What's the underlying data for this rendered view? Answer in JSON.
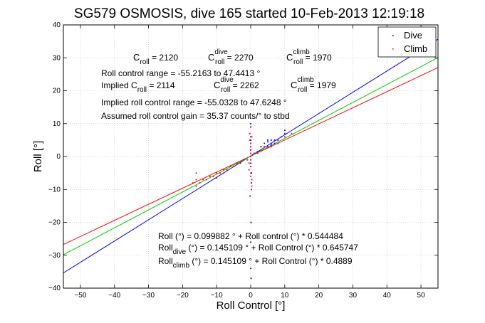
{
  "chart_data": {
    "type": "scatter",
    "title": "SG579 OSMOSIS, dive 165 started 10-Feb-2013 12:19:18",
    "xlabel": "Roll Control [°]",
    "ylabel": "Roll [°]",
    "xlim": [
      -55,
      55
    ],
    "ylim": [
      -40,
      40
    ],
    "xticks": [
      -50,
      -40,
      -30,
      -20,
      -10,
      0,
      10,
      20,
      30,
      40,
      50
    ],
    "yticks": [
      -40,
      -30,
      -20,
      -10,
      0,
      10,
      20,
      30,
      40
    ],
    "legend": {
      "position": "top-right",
      "entries": [
        "Dive",
        "Climb"
      ]
    },
    "colors": {
      "dive": "#0000ff",
      "climb": "#ff0000",
      "combined": "#00cc00"
    },
    "series": [
      {
        "name": "Dive",
        "color": "#0000ff",
        "points": [
          [
            0,
            -3
          ],
          [
            0,
            -2
          ],
          [
            0,
            -1
          ],
          [
            0,
            0
          ],
          [
            0,
            1
          ],
          [
            0,
            2
          ],
          [
            0,
            3
          ],
          [
            0,
            4
          ],
          [
            0,
            5
          ],
          [
            0,
            6
          ],
          [
            0,
            9
          ],
          [
            0,
            10
          ],
          [
            0.2,
            -5
          ],
          [
            0.2,
            -8
          ],
          [
            -0.2,
            -12
          ],
          [
            0.1,
            -20
          ],
          [
            0,
            -26
          ],
          [
            0,
            -34
          ],
          [
            0.1,
            -37
          ],
          [
            0.5,
            0.5
          ],
          [
            1,
            1
          ],
          [
            2,
            1.5
          ],
          [
            3,
            2
          ],
          [
            4,
            3
          ],
          [
            5,
            3
          ],
          [
            5,
            4.5
          ],
          [
            6,
            3.5
          ],
          [
            6,
            4
          ],
          [
            7,
            4
          ],
          [
            8,
            5
          ],
          [
            9,
            6
          ],
          [
            10,
            7
          ],
          [
            10,
            8
          ],
          [
            5,
            5
          ],
          [
            4,
            4
          ],
          [
            6,
            5
          ],
          [
            3,
            3
          ],
          [
            7,
            5
          ]
        ]
      },
      {
        "name": "Climb",
        "color": "#ff0000",
        "points": [
          [
            -16,
            -5
          ],
          [
            -16,
            -7
          ],
          [
            -17,
            -8
          ],
          [
            -16,
            -9
          ],
          [
            -15,
            -8
          ],
          [
            -14,
            -7
          ],
          [
            -13,
            -7
          ],
          [
            -12,
            -6
          ],
          [
            -11,
            -6
          ],
          [
            -10,
            -5
          ],
          [
            -10,
            -6.5
          ],
          [
            -9,
            -5
          ],
          [
            -8,
            -4
          ],
          [
            -8,
            -5
          ],
          [
            -7,
            -4
          ],
          [
            -6,
            -3
          ],
          [
            -5,
            -3
          ],
          [
            -4,
            -2
          ],
          [
            -3,
            -2
          ],
          [
            -2,
            -1
          ],
          [
            -1,
            -1
          ],
          [
            -0.5,
            -2
          ],
          [
            -0.5,
            -4
          ],
          [
            0,
            -1
          ],
          [
            0,
            0
          ],
          [
            0,
            1
          ],
          [
            0,
            2
          ],
          [
            0,
            3
          ],
          [
            0,
            4
          ],
          [
            0,
            -3
          ],
          [
            0,
            -5
          ],
          [
            0,
            -6
          ],
          [
            0.3,
            -7
          ],
          [
            0.3,
            -9
          ],
          [
            0.2,
            -10
          ],
          [
            -0.3,
            5
          ],
          [
            0.3,
            6
          ],
          [
            -0.3,
            7
          ],
          [
            1,
            1
          ],
          [
            2,
            1
          ],
          [
            3,
            2
          ],
          [
            4,
            3
          ],
          [
            5,
            3
          ],
          [
            6,
            3
          ],
          [
            8,
            4
          ],
          [
            10,
            6
          ],
          [
            12,
            7
          ]
        ]
      }
    ],
    "fit_lines": [
      {
        "name": "dive fit",
        "color": "#0000ff",
        "slope": 0.645747,
        "intercept": 0.145109
      },
      {
        "name": "climb fit",
        "color": "#ff0000",
        "slope": 0.4889,
        "intercept": 0.145109
      },
      {
        "name": "overall fit",
        "color": "#00cc00",
        "slope": 0.544484,
        "intercept": 0.099882
      }
    ],
    "annotations": {
      "c_roll": {
        "c": "C",
        "sub": "roll",
        "eq": " = 2120"
      },
      "c_roll_dive": {
        "c": "C",
        "sup": "dive",
        "sub": "roll",
        "eq": " = 2270"
      },
      "c_roll_climb": {
        "c": "C",
        "sup": "climb",
        "sub": "roll",
        "eq": " = 1970"
      },
      "roll_control_range": "Roll control range = -55.2163 to 47.4413 °",
      "implied_prefix": "Implied C",
      "implied_sub": "roll",
      "implied_eq": " = 2114",
      "implied_dive": {
        "c": "C",
        "sup": "dive",
        "sub": "roll",
        "eq": " = 2262"
      },
      "implied_climb": {
        "c": "C",
        "sup": "climb",
        "sub": "roll",
        "eq": " = 1979"
      },
      "implied_range": "Implied roll control range = -55.0328 to 47.6248 °",
      "gain": "Assumed roll control gain = 35.37 counts/° to stbd",
      "eq_overall": "Roll (°) = 0.099882 ° + Roll control (°) * 0.544484",
      "eq_dive_prefix": "Roll",
      "eq_dive_sub": "dive",
      "eq_dive_rest": " (°) = 0.145109 ° + Roll Control (°) * 0.645747",
      "eq_climb_prefix": "Roll",
      "eq_climb_sub": "climb",
      "eq_climb_rest": " (°) = 0.145109 ° + Roll Control (°) * 0.4889"
    }
  }
}
